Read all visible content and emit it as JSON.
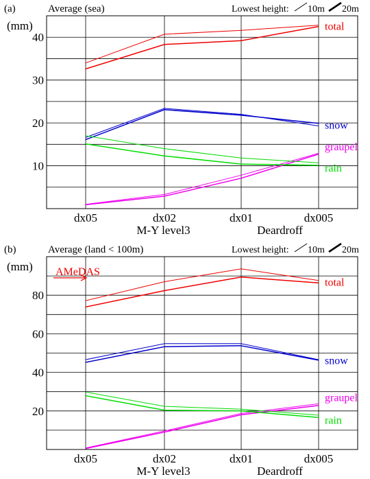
{
  "chart_data": [
    {
      "type": "line",
      "panel_label": "(a)",
      "title": "Average (sea)",
      "unit": "(mm)",
      "legend": {
        "label": "Lowest height:",
        "entries": [
          {
            "name": "10m",
            "line": "thin"
          },
          {
            "name": "20m",
            "line": "thick"
          }
        ],
        "placement": "top-right"
      },
      "categories": [
        "dx05",
        "dx02",
        "dx01",
        "dx005"
      ],
      "group_labels": [
        {
          "text": "M-Y level3",
          "under": [
            "dx05",
            "dx02",
            "dx01"
          ]
        },
        {
          "text": "Deardroff",
          "under": [
            "dx01",
            "dx005"
          ]
        }
      ],
      "ylim": [
        0,
        45
      ],
      "yticks": [
        10,
        20,
        30,
        40
      ],
      "grid_step": 5,
      "segments": [
        [
          "dx05",
          "dx02",
          "dx01"
        ],
        [
          "dx01",
          "dx005"
        ]
      ],
      "series": [
        {
          "name": "total",
          "color": "#ee0000",
          "values_10m": [
            34.0,
            40.7,
            41.6,
            42.8
          ],
          "values_20m": [
            32.6,
            38.3,
            39.2,
            42.5
          ]
        },
        {
          "name": "snow",
          "color": "#0000cc",
          "values_10m": [
            16.6,
            23.4,
            22.0,
            19.3
          ],
          "values_20m": [
            16.1,
            23.1,
            21.8,
            19.9
          ]
        },
        {
          "name": "graupel",
          "color": "#ee00ee",
          "values_10m": [
            1.0,
            3.3,
            7.8,
            12.9
          ],
          "values_20m": [
            0.9,
            2.9,
            7.1,
            12.7
          ]
        },
        {
          "name": "rain",
          "color": "#00dd00",
          "values_10m": [
            17.0,
            14.0,
            11.8,
            10.7
          ],
          "values_20m": [
            15.1,
            12.3,
            10.4,
            10.1
          ]
        }
      ]
    },
    {
      "type": "line",
      "panel_label": "(b)",
      "title": "Average (land < 100m)",
      "unit": "(mm)",
      "legend": {
        "label": "Lowest height:",
        "entries": [
          {
            "name": "10m",
            "line": "thin"
          },
          {
            "name": "20m",
            "line": "thick"
          }
        ],
        "placement": "top-right"
      },
      "categories": [
        "dx05",
        "dx02",
        "dx01",
        "dx005"
      ],
      "group_labels": [
        {
          "text": "M-Y level3",
          "under": [
            "dx05",
            "dx02",
            "dx01"
          ]
        },
        {
          "text": "Deardroff",
          "under": [
            "dx01",
            "dx005"
          ]
        }
      ],
      "ylim": [
        0,
        100
      ],
      "yticks": [
        20,
        40,
        60,
        80
      ],
      "grid_step": 10,
      "segments": [
        [
          "dx05",
          "dx02",
          "dx01"
        ],
        [
          "dx01",
          "dx005"
        ]
      ],
      "annotation": {
        "text": "AMeDAS",
        "value": 89,
        "color": "#ee0000"
      },
      "series": [
        {
          "name": "total",
          "color": "#ee0000",
          "values_10m": [
            77.2,
            87.0,
            93.7,
            87.6
          ],
          "values_20m": [
            73.9,
            82.4,
            89.4,
            86.4
          ]
        },
        {
          "name": "snow",
          "color": "#0000cc",
          "values_10m": [
            46.6,
            54.9,
            54.9,
            46.6
          ],
          "values_20m": [
            45.2,
            53.3,
            53.8,
            46.3
          ]
        },
        {
          "name": "graupel",
          "color": "#ee00ee",
          "values_10m": [
            0.8,
            9.6,
            18.7,
            23.7
          ],
          "values_20m": [
            0.5,
            9.0,
            18.0,
            22.8
          ]
        },
        {
          "name": "rain",
          "color": "#00dd00",
          "values_10m": [
            29.8,
            22.4,
            20.9,
            17.8
          ],
          "values_20m": [
            27.9,
            20.4,
            20.0,
            16.6
          ]
        }
      ]
    }
  ]
}
